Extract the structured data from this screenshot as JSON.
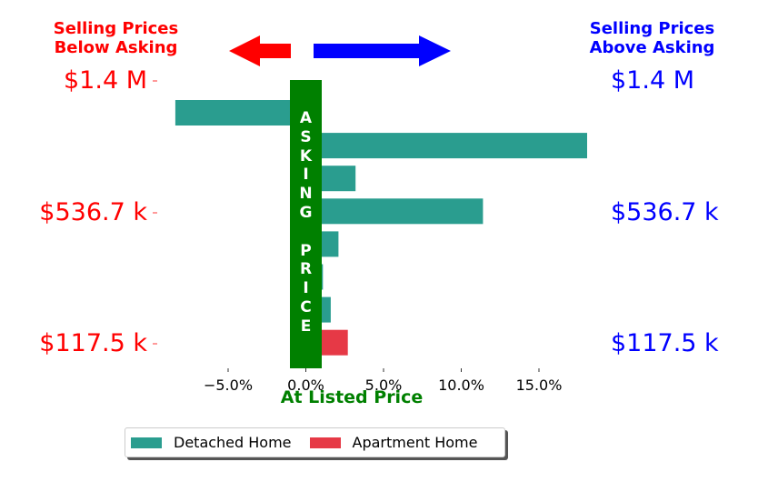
{
  "header": {
    "left_line1": "Selling Prices",
    "left_line2": "Below Asking",
    "right_line1": "Selling Prices",
    "right_line2": "Above Asking"
  },
  "side_labels": {
    "left": [
      "$1.4 M",
      "$536.7 k",
      "$117.5 k"
    ],
    "right": [
      "$1.4 M",
      "$536.7 k",
      "$117.5 k"
    ]
  },
  "center_label": "At Listed Price",
  "asking_price_text": [
    "A",
    "S",
    "K",
    "I",
    "N",
    "G",
    "",
    "P",
    "R",
    "I",
    "C",
    "E"
  ],
  "legend": {
    "detached": "Detached Home",
    "apartment": "Apartment Home"
  },
  "colors": {
    "detached": "#2a9d8f",
    "apartment": "#e63946",
    "asking_bar": "#008000",
    "left_arrow": "#ff0000",
    "right_arrow": "#0000ff",
    "left_text": "#ff0000",
    "right_text": "#0000ff"
  },
  "chart_data": {
    "type": "bar",
    "orientation": "horizontal",
    "xlim": [
      -9.5,
      18.5
    ],
    "xticks": [
      -5,
      0,
      5,
      10,
      15
    ],
    "xtick_labels": [
      "−5.0%",
      "0.0%",
      "5.0%",
      "10.0%",
      "15.0%"
    ],
    "series": [
      {
        "name": "Detached Home",
        "values": [
          -8.4,
          18.1,
          3.2,
          11.4,
          2.1,
          1.1,
          1.6
        ]
      },
      {
        "name": "Apartment Home",
        "values": [
          2.7
        ]
      }
    ],
    "bars": [
      {
        "series": "Detached Home",
        "value": -8.4
      },
      {
        "series": "Detached Home",
        "value": 18.1
      },
      {
        "series": "Detached Home",
        "value": 3.2
      },
      {
        "series": "Detached Home",
        "value": 11.4
      },
      {
        "series": "Detached Home",
        "value": 2.1
      },
      {
        "series": "Detached Home",
        "value": 1.1
      },
      {
        "series": "Detached Home",
        "value": 1.6
      },
      {
        "series": "Apartment Home",
        "value": 2.7
      }
    ],
    "legend_position": "bottom",
    "grid": false
  }
}
